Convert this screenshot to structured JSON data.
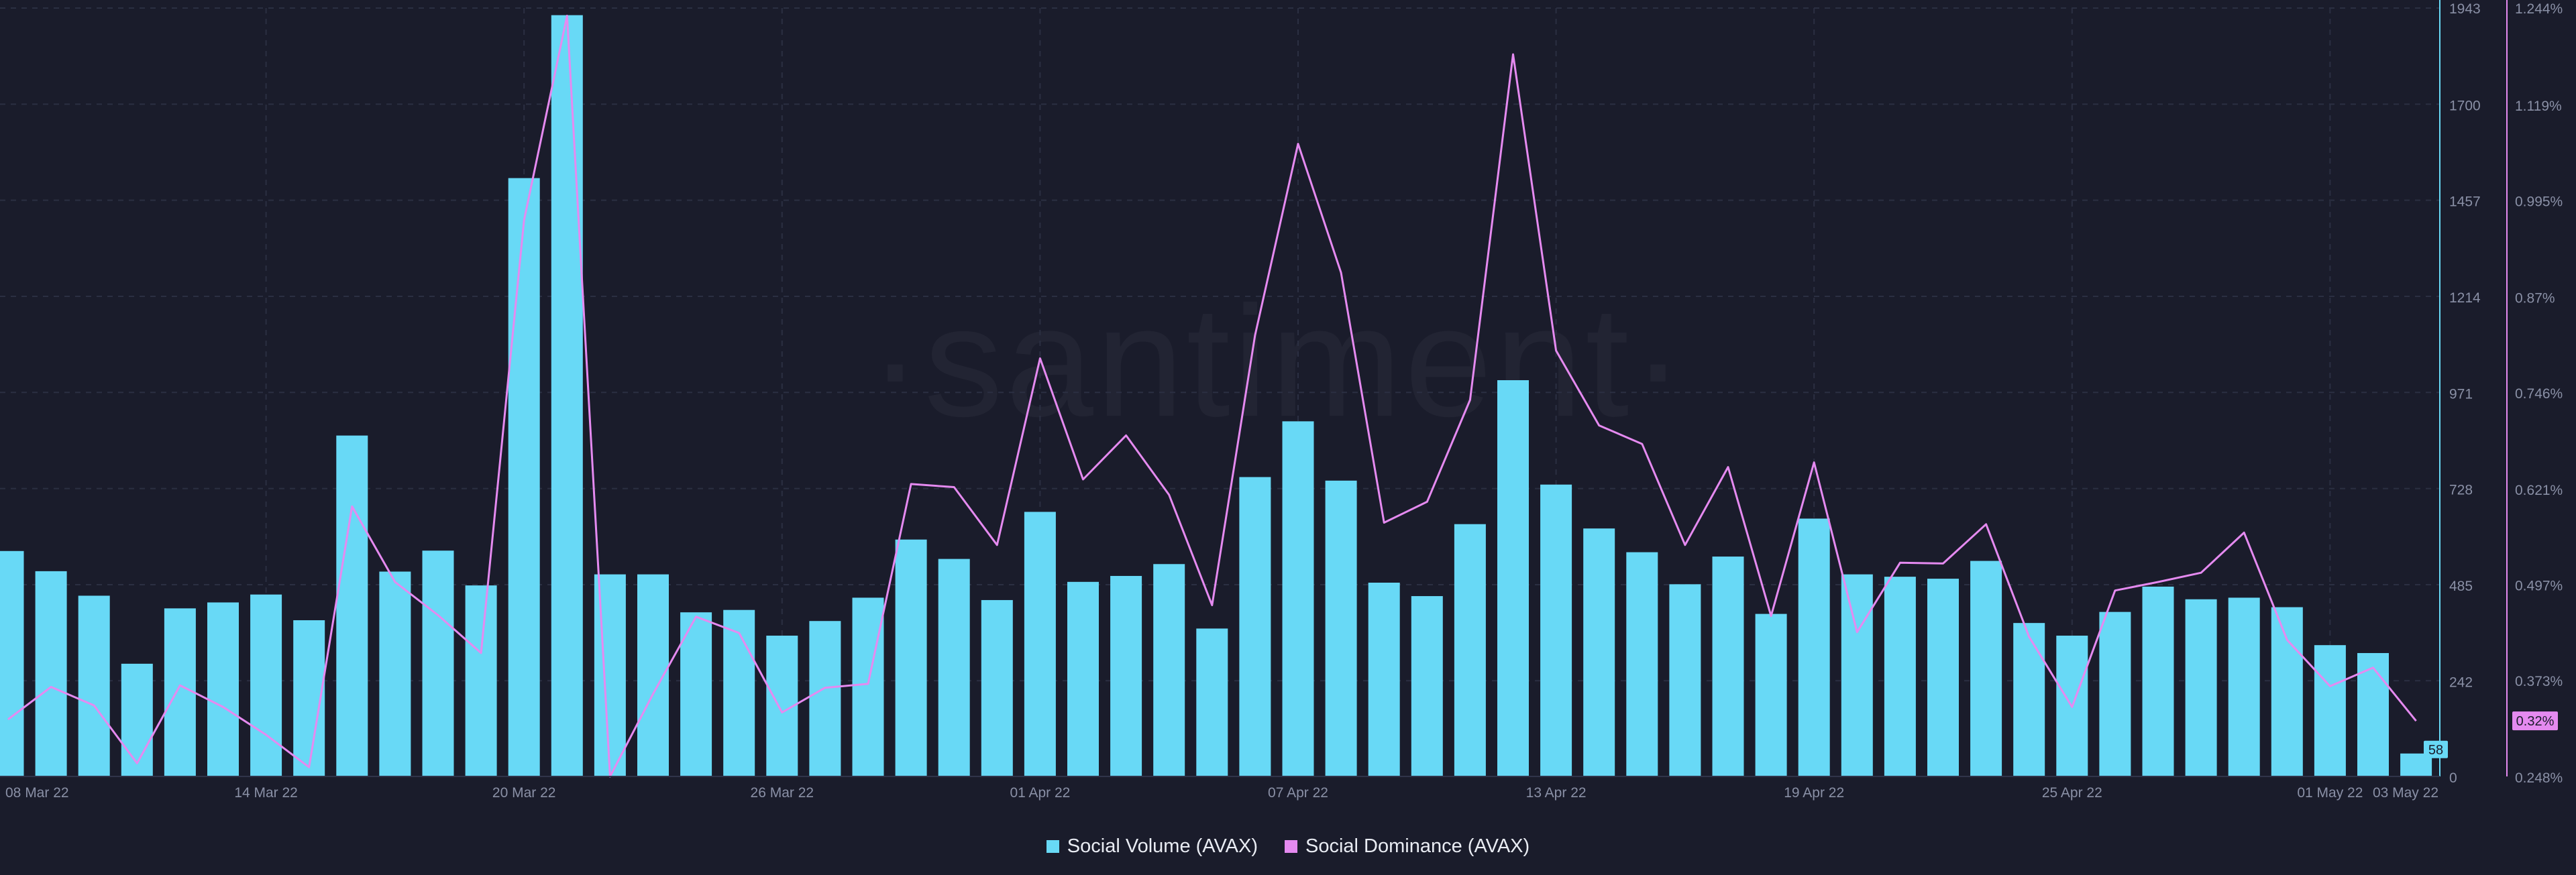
{
  "watermark": "·santiment·",
  "colors": {
    "background": "#1a1c2b",
    "volume": "#68d9f6",
    "dominance": "#e58af0",
    "grid": "#2b2f42",
    "axis_text": "#8a90a6"
  },
  "chart_data": {
    "type": "bar",
    "x_ticks": [
      "08 Mar 22",
      "14 Mar 22",
      "20 Mar 22",
      "26 Mar 22",
      "01 Apr 22",
      "07 Apr 22",
      "13 Apr 22",
      "19 Apr 22",
      "25 Apr 22",
      "01 May 22",
      "03 May 22"
    ],
    "y_left": {
      "ticks": [
        "0",
        "242",
        "485",
        "728",
        "971",
        "1214",
        "1457",
        "1700",
        "1943"
      ],
      "range": [
        0,
        1943
      ]
    },
    "y_right": {
      "ticks": [
        "0.248%",
        "0.373%",
        "0.497%",
        "0.621%",
        "0.746%",
        "0.87%",
        "0.995%",
        "1.119%",
        "1.244%"
      ],
      "range": [
        0.248,
        1.244
      ]
    },
    "series": [
      {
        "name": "Social Volume (AVAX)",
        "type": "bar",
        "axis": "left",
        "values": [
          570,
          519,
          457,
          285,
          425,
          440,
          460,
          395,
          862,
          518,
          571,
          483,
          1513,
          1925,
          511,
          511,
          415,
          421,
          356,
          393,
          452,
          599,
          550,
          446,
          669,
          492,
          507,
          537,
          374,
          757,
          898,
          748,
          490,
          456,
          638,
          1002,
          738,
          627,
          567,
          486,
          556,
          411,
          652,
          511,
          505,
          500,
          545,
          388,
          356,
          416,
          480,
          448,
          452,
          428,
          332,
          312,
          58
        ],
        "last_value_label": "58"
      },
      {
        "name": "Social Dominance (AVAX)",
        "type": "line",
        "axis": "right",
        "values": [
          0.322,
          0.364,
          0.34,
          0.265,
          0.366,
          0.338,
          0.302,
          0.26,
          0.598,
          0.5,
          0.457,
          0.408,
          0.969,
          1.234,
          0.248,
          0.355,
          0.455,
          0.434,
          0.331,
          0.363,
          0.368,
          0.627,
          0.623,
          0.548,
          0.79,
          0.633,
          0.69,
          0.613,
          0.47,
          0.82,
          1.068,
          0.901,
          0.577,
          0.604,
          0.736,
          1.184,
          0.8,
          0.703,
          0.679,
          0.548,
          0.649,
          0.456,
          0.655,
          0.435,
          0.525,
          0.524,
          0.575,
          0.429,
          0.338,
          0.489,
          0.5,
          0.512,
          0.564,
          0.425,
          0.365,
          0.389,
          0.32
        ],
        "last_value_label": "0.32%"
      }
    ],
    "legend": [
      "Social Volume (AVAX)",
      "Social Dominance (AVAX)"
    ],
    "legend_position": "bottom-center",
    "grid": true
  }
}
